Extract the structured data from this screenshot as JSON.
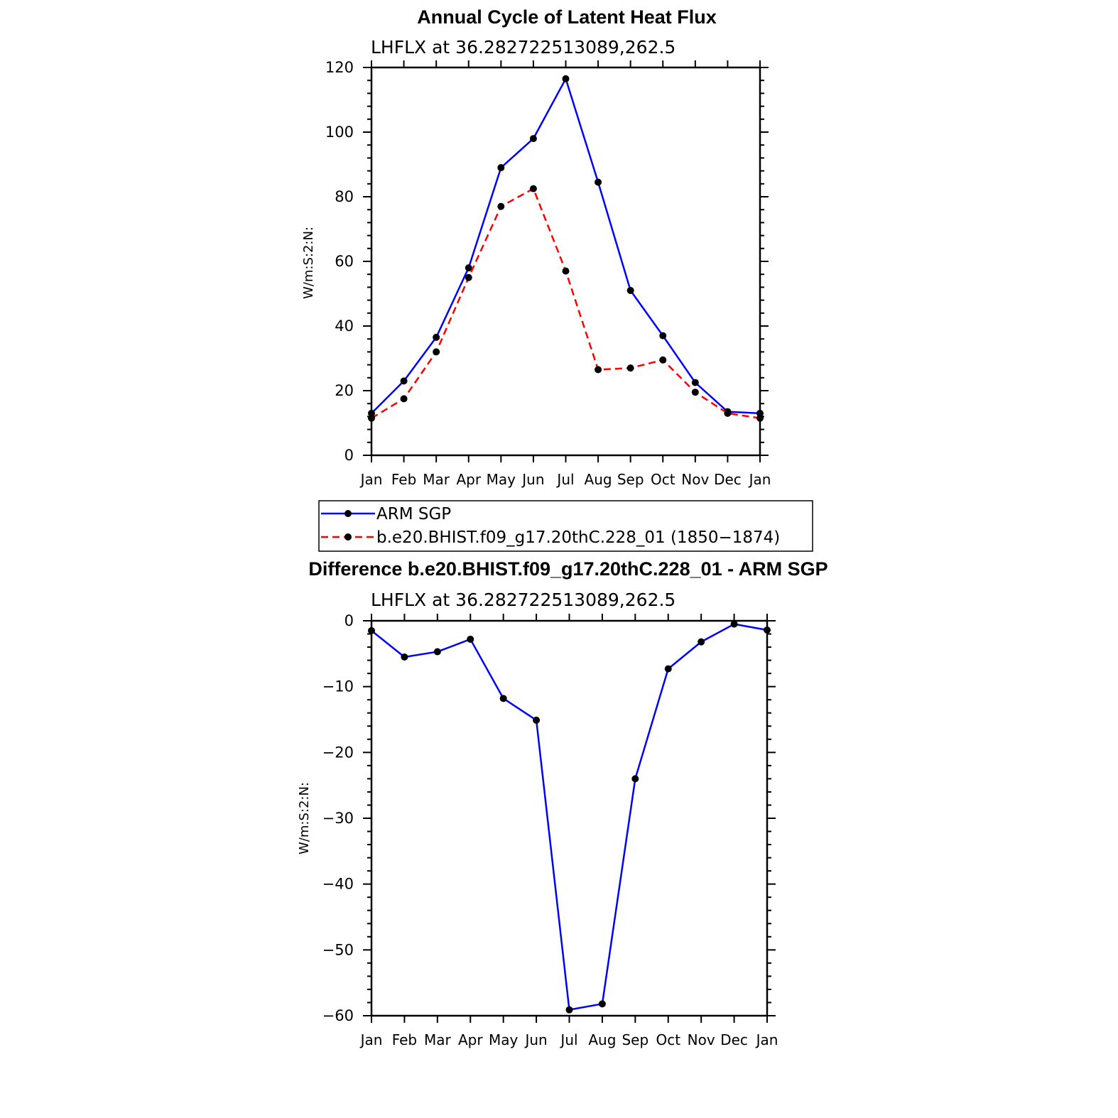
{
  "chart_data": [
    {
      "type": "line",
      "title": "Annual Cycle of Latent Heat Flux",
      "subtitle": "LHFLX at 36.282722513089,262.5",
      "ylabel": "W/m:S:2:N:",
      "xlabel": "",
      "categories": [
        "Jan",
        "Feb",
        "Mar",
        "Apr",
        "May",
        "Jun",
        "Jul",
        "Aug",
        "Sep",
        "Oct",
        "Nov",
        "Dec",
        "Jan"
      ],
      "yticks": [
        0,
        20,
        40,
        60,
        80,
        100,
        120
      ],
      "ytick_labels": [
        "0",
        "20",
        "40",
        "60",
        "80",
        "100",
        "120"
      ],
      "ylim": [
        0,
        120
      ],
      "series": [
        {
          "name": "ARM SGP",
          "color": "#0000ff",
          "dash": "solid",
          "values": [
            13.0,
            23.0,
            36.5,
            58.0,
            89.0,
            98.0,
            116.5,
            84.5,
            51.0,
            37.0,
            22.5,
            13.5,
            13.0
          ]
        },
        {
          "name": "b.e20.BHIST.f09_g17.20thC.228_01 (1850-1874)",
          "color": "#ff0000",
          "dash": "dashed",
          "values": [
            11.5,
            17.5,
            32.0,
            55.0,
            77.0,
            82.5,
            57.0,
            26.5,
            27.0,
            29.5,
            19.5,
            13.0,
            11.5
          ]
        }
      ],
      "legend": {
        "placement": "below",
        "entries": [
          "ARM SGP",
          "b.e20.BHIST.f09_g17.20thC.228_01 (1850−1874)"
        ]
      }
    },
    {
      "type": "line",
      "title": "Difference b.e20.BHIST.f09_g17.20thC.228_01 - ARM SGP",
      "subtitle": "LHFLX at 36.282722513089,262.5",
      "ylabel": "W/m:S:2:N:",
      "xlabel": "",
      "categories": [
        "Jan",
        "Feb",
        "Mar",
        "Apr",
        "May",
        "Jun",
        "Jul",
        "Aug",
        "Sep",
        "Oct",
        "Nov",
        "Dec",
        "Jan"
      ],
      "yticks": [
        0,
        -10,
        -20,
        -30,
        -40,
        -50,
        -60
      ],
      "ytick_labels": [
        "0",
        "−10",
        "−20",
        "−30",
        "−40",
        "−50",
        "−60"
      ],
      "ylim": [
        -60,
        0
      ],
      "series": [
        {
          "name": "Difference",
          "color": "#0000ff",
          "dash": "solid",
          "values": [
            -1.5,
            -5.5,
            -4.7,
            -2.8,
            -11.8,
            -15.1,
            -59.1,
            -58.2,
            -24.0,
            -7.3,
            -3.2,
            -0.5,
            -1.4
          ]
        }
      ]
    }
  ]
}
